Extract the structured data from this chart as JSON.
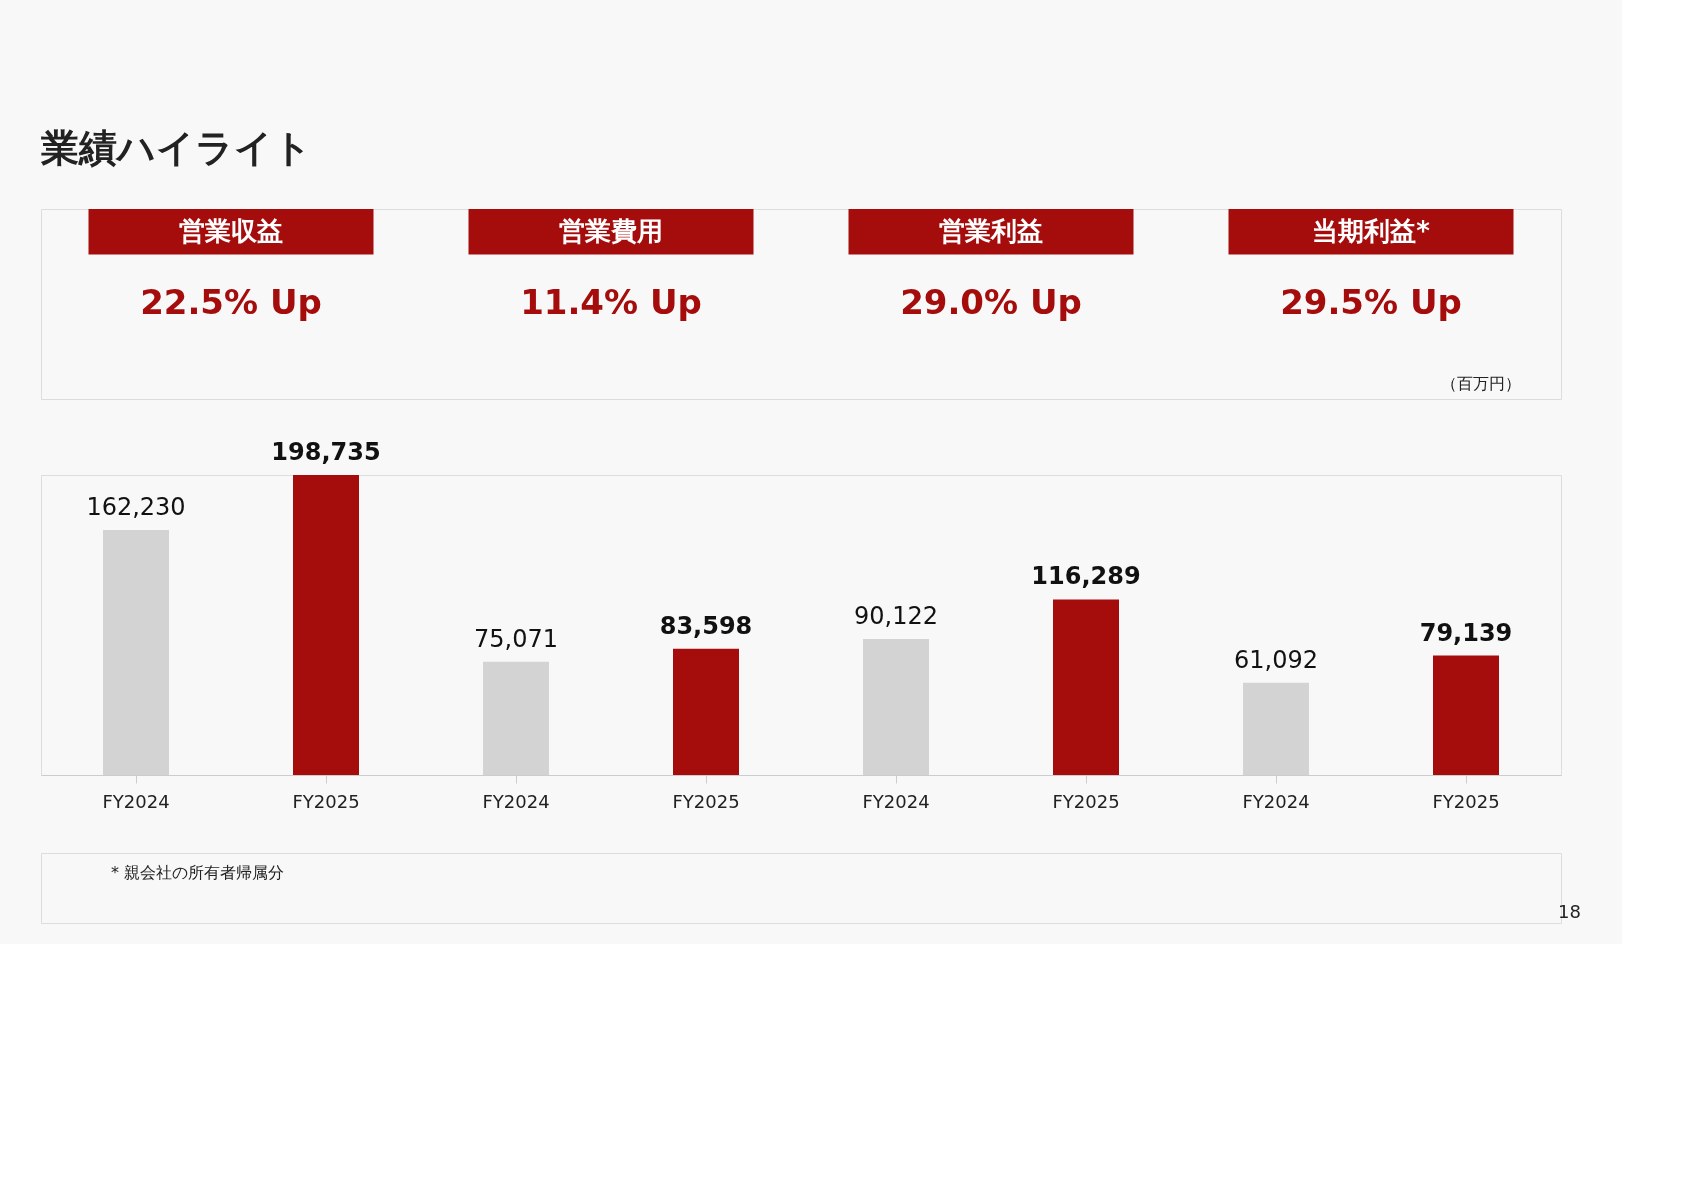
{
  "chart_data": {
    "type": "bar",
    "title": "業績ハイライト",
    "categories": [
      "FY2024",
      "FY2025",
      "FY2024",
      "FY2025",
      "FY2024",
      "FY2025",
      "FY2024",
      "FY2025"
    ],
    "values": [
      162230,
      198735,
      75071,
      83598,
      90122,
      116289,
      61092,
      79139
    ],
    "colors": [
      "#d3d3d3",
      "#a50d0d",
      "#d3d3d3",
      "#a50d0d",
      "#d3d3d3",
      "#a50d0d",
      "#d3d3d3",
      "#a50d0d"
    ],
    "value_labels": [
      "162,230",
      "198,735",
      "75,071",
      "83,598",
      "90,122",
      "116,289",
      "61,092",
      "79,139"
    ],
    "grid": false,
    "annotations": [
      "営業収益",
      "営業費用",
      "営業利益",
      "当期利益*",
      "22.5% Up",
      "11.4% Up",
      "29.0% Up",
      "29.5% Up",
      "（百万円）",
      "* 親会社の所有者帰属分",
      "18"
    ]
  }
}
